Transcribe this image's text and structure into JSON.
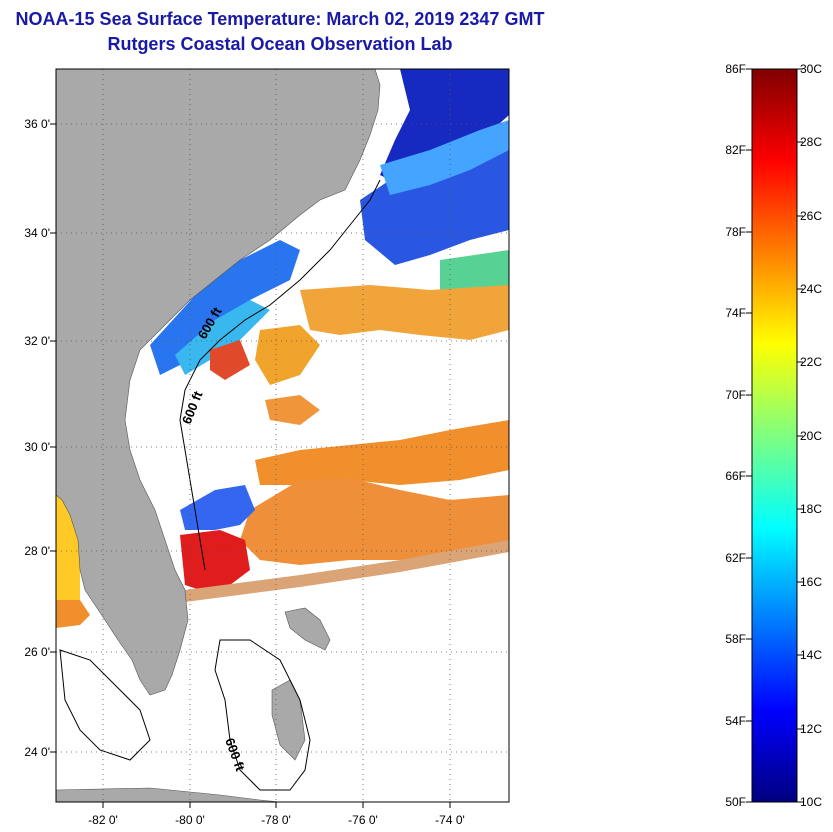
{
  "header": {
    "title": "NOAA-15 Sea Surface Temperature:  March 02, 2019 2347 GMT",
    "subtitle": "Rutgers Coastal Ocean Observation Lab"
  },
  "map": {
    "lat_ticks": [
      "36 0'",
      "34 0'",
      "32 0'",
      "30 0'",
      "28 0'",
      "26 0'",
      "24 0'"
    ],
    "lon_ticks": [
      "-82 0'",
      "-80 0'",
      "-78 0'",
      "-76 0'",
      "-74 0'"
    ],
    "isobath_labels": [
      "600 ft",
      "600 ft",
      "600 ft"
    ],
    "land_color": "#a9a9a9",
    "missing_color": "#ffffff"
  },
  "colorbar": {
    "fahrenheit_labels": [
      "86F",
      "82F",
      "78F",
      "74F",
      "70F",
      "66F",
      "62F",
      "58F",
      "54F",
      "50F"
    ],
    "celsius_labels": [
      "30C",
      "28C",
      "26C",
      "24C",
      "22C",
      "20C",
      "18C",
      "16C",
      "14C",
      "12C",
      "10C"
    ],
    "colors": [
      "#7f0000",
      "#ff0000",
      "#ff7f00",
      "#ffff00",
      "#7fff7f",
      "#00ffff",
      "#007fff",
      "#0000ff",
      "#00007f"
    ]
  }
}
